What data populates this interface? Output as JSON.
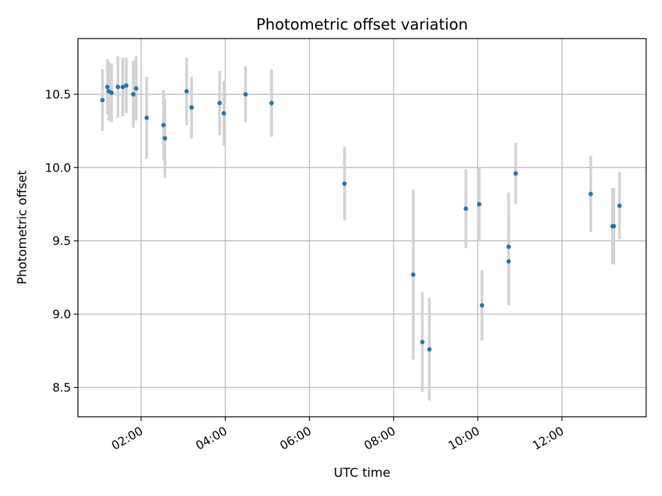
{
  "chart_data": {
    "type": "scatter",
    "title": "Photometric offset variation",
    "xlabel": "UTC time",
    "ylabel": "Photometric offset",
    "x_tick_labels": [
      "02:00",
      "04:00",
      "06:00",
      "08:00",
      "10:00",
      "12:00"
    ],
    "y_tick_labels": [
      "8.5",
      "9.0",
      "9.5",
      "10.0",
      "10.5"
    ],
    "x_ticks": [
      "02:00",
      "04:00",
      "06:00",
      "08:00",
      "10:00",
      "12:00"
    ],
    "y_ticks": [
      8.5,
      9.0,
      9.5,
      10.0,
      10.5
    ],
    "xlim": [
      "00:30",
      "14:00"
    ],
    "ylim": [
      8.3,
      10.88
    ],
    "grid": true,
    "marker_color": "#1f77b4",
    "errorbar_color": "#d3d3d3",
    "points": [
      {
        "x": "01:05",
        "y": 10.46,
        "err": 0.21
      },
      {
        "x": "01:12",
        "y": 10.55,
        "err": 0.19
      },
      {
        "x": "01:14",
        "y": 10.52,
        "err": 0.2
      },
      {
        "x": "01:18",
        "y": 10.51,
        "err": 0.2
      },
      {
        "x": "01:27",
        "y": 10.55,
        "err": 0.21
      },
      {
        "x": "01:34",
        "y": 10.55,
        "err": 0.2
      },
      {
        "x": "01:39",
        "y": 10.56,
        "err": 0.19
      },
      {
        "x": "01:49",
        "y": 10.5,
        "err": 0.23
      },
      {
        "x": "01:53",
        "y": 10.54,
        "err": 0.22
      },
      {
        "x": "02:08",
        "y": 10.34,
        "err": 0.28
      },
      {
        "x": "02:32",
        "y": 10.29,
        "err": 0.24
      },
      {
        "x": "02:34",
        "y": 10.2,
        "err": 0.27
      },
      {
        "x": "03:05",
        "y": 10.52,
        "err": 0.23
      },
      {
        "x": "03:12",
        "y": 10.41,
        "err": 0.21
      },
      {
        "x": "03:52",
        "y": 10.44,
        "err": 0.22
      },
      {
        "x": "03:58",
        "y": 10.37,
        "err": 0.22
      },
      {
        "x": "04:29",
        "y": 10.5,
        "err": 0.19
      },
      {
        "x": "05:06",
        "y": 10.44,
        "err": 0.23
      },
      {
        "x": "06:50",
        "y": 9.89,
        "err": 0.25
      },
      {
        "x": "08:28",
        "y": 9.27,
        "err": 0.58
      },
      {
        "x": "08:41",
        "y": 8.81,
        "err": 0.34
      },
      {
        "x": "08:51",
        "y": 8.76,
        "err": 0.35
      },
      {
        "x": "09:43",
        "y": 9.72,
        "err": 0.27
      },
      {
        "x": "10:02",
        "y": 9.75,
        "err": 0.25
      },
      {
        "x": "10:06",
        "y": 9.06,
        "err": 0.24
      },
      {
        "x": "10:44",
        "y": 9.46,
        "err": 0.37
      },
      {
        "x": "10:44",
        "y": 9.36,
        "err": 0.3
      },
      {
        "x": "10:54",
        "y": 9.96,
        "err": 0.21
      },
      {
        "x": "12:41",
        "y": 9.82,
        "err": 0.26
      },
      {
        "x": "13:12",
        "y": 9.6,
        "err": 0.26
      },
      {
        "x": "13:14",
        "y": 9.6,
        "err": 0.26
      },
      {
        "x": "13:22",
        "y": 9.74,
        "err": 0.23
      }
    ]
  }
}
